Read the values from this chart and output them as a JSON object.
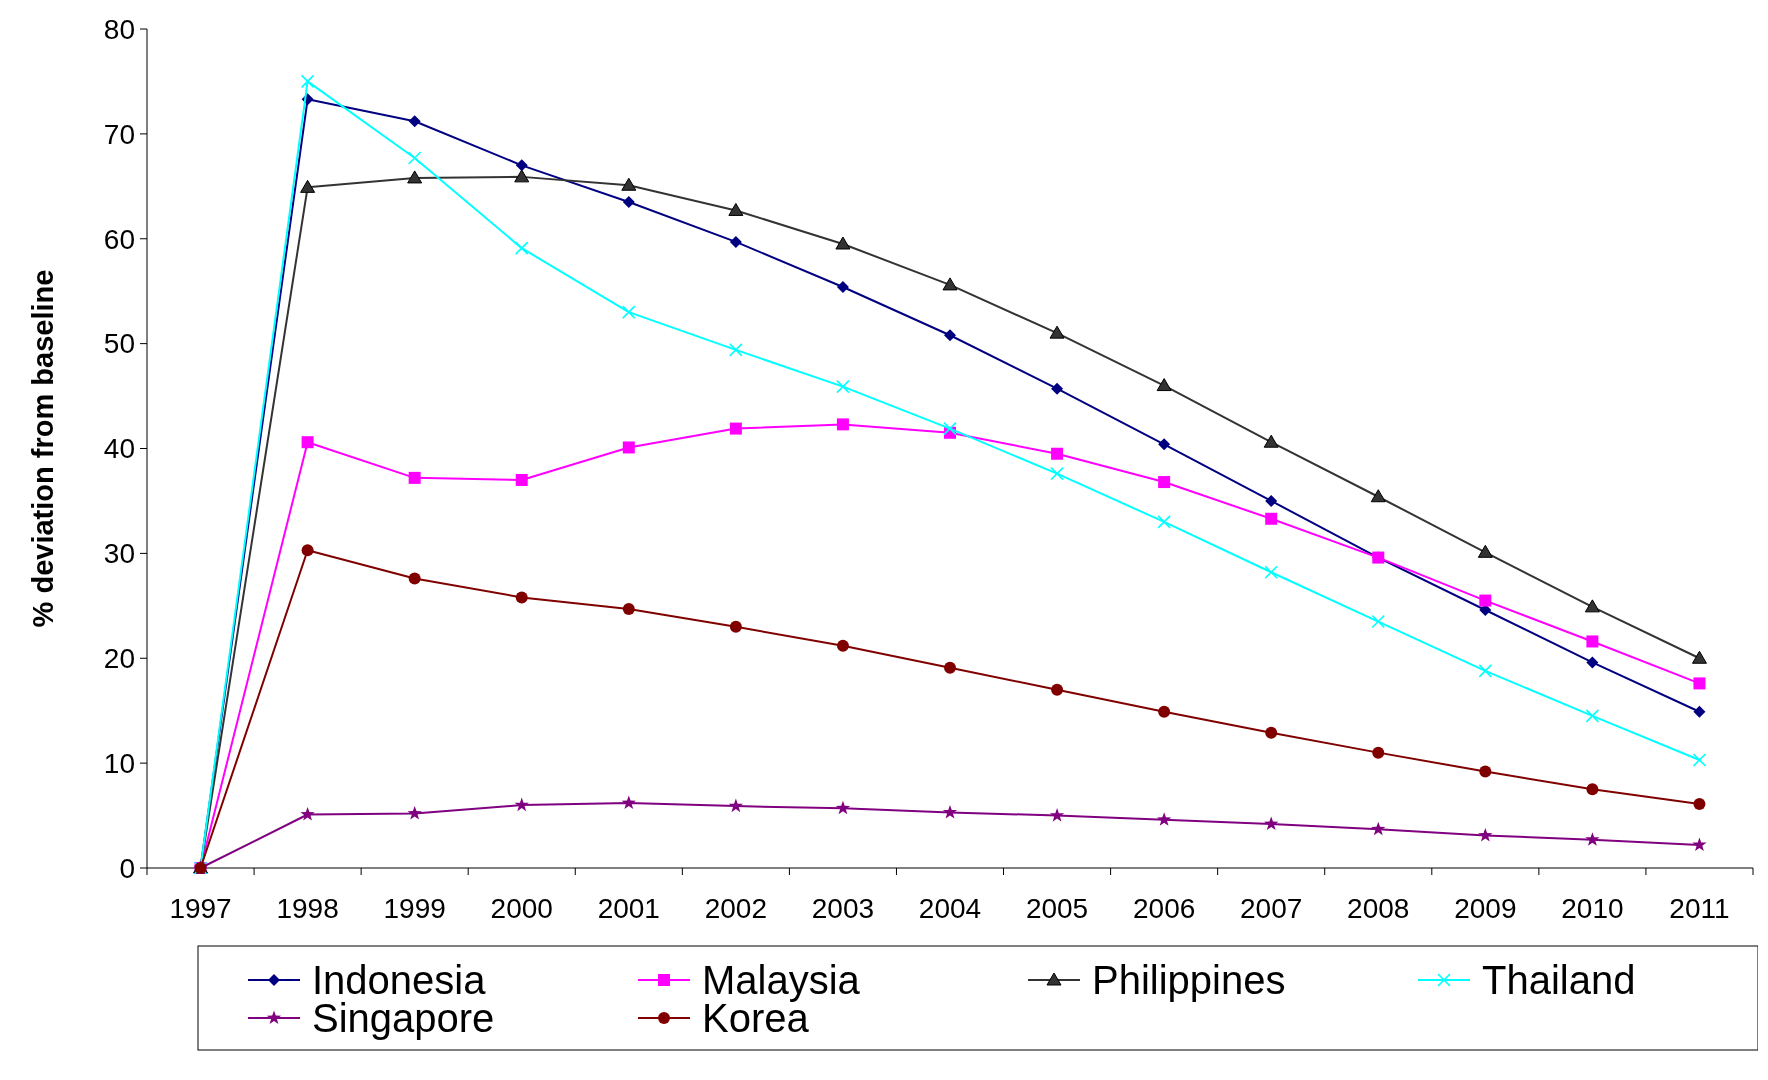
{
  "chart_data": {
    "type": "line",
    "ylabel": "% deviation from baseline",
    "categories": [
      "1997",
      "1998",
      "1999",
      "2000",
      "2001",
      "2002",
      "2003",
      "2004",
      "2005",
      "2006",
      "2007",
      "2008",
      "2009",
      "2010",
      "2011"
    ],
    "ylim": [
      0,
      80
    ],
    "yticks": [
      0,
      10,
      20,
      30,
      40,
      50,
      60,
      70,
      80
    ],
    "grid": false,
    "legend": "bottom",
    "series": [
      {
        "name": "Indonesia",
        "color": "#000080",
        "marker": "diamond",
        "values": [
          0,
          73.3,
          71.2,
          67.0,
          63.5,
          59.7,
          55.4,
          50.8,
          45.7,
          40.4,
          35.0,
          29.6,
          24.6,
          19.6,
          14.9
        ]
      },
      {
        "name": "Malaysia",
        "color": "#ff00ff",
        "marker": "square",
        "values": [
          0,
          40.6,
          37.2,
          37.0,
          40.1,
          41.9,
          42.3,
          41.5,
          39.5,
          36.8,
          33.3,
          29.6,
          25.5,
          21.6,
          17.6
        ]
      },
      {
        "name": "Philippines",
        "color": "#333333",
        "marker": "triangle",
        "values": [
          0,
          64.9,
          65.8,
          65.9,
          65.1,
          62.7,
          59.5,
          55.6,
          51.0,
          46.0,
          40.6,
          35.4,
          30.1,
          24.9,
          20.0
        ]
      },
      {
        "name": "Thailand",
        "color": "#00ffff",
        "marker": "cross",
        "values": [
          0,
          75.0,
          67.7,
          59.1,
          53.0,
          49.4,
          45.9,
          41.9,
          37.6,
          33.0,
          28.2,
          23.5,
          18.8,
          14.5,
          10.3
        ]
      },
      {
        "name": "Singapore",
        "color": "#800080",
        "marker": "star",
        "values": [
          0,
          5.1,
          5.2,
          6.0,
          6.2,
          5.9,
          5.7,
          5.3,
          5.0,
          4.6,
          4.2,
          3.7,
          3.1,
          2.7,
          2.2
        ]
      },
      {
        "name": "Korea",
        "color": "#800000",
        "marker": "circle",
        "values": [
          0,
          30.3,
          27.6,
          25.8,
          24.7,
          23.0,
          21.2,
          19.1,
          17.0,
          14.9,
          12.9,
          11.0,
          9.2,
          7.5,
          6.1
        ]
      }
    ]
  }
}
